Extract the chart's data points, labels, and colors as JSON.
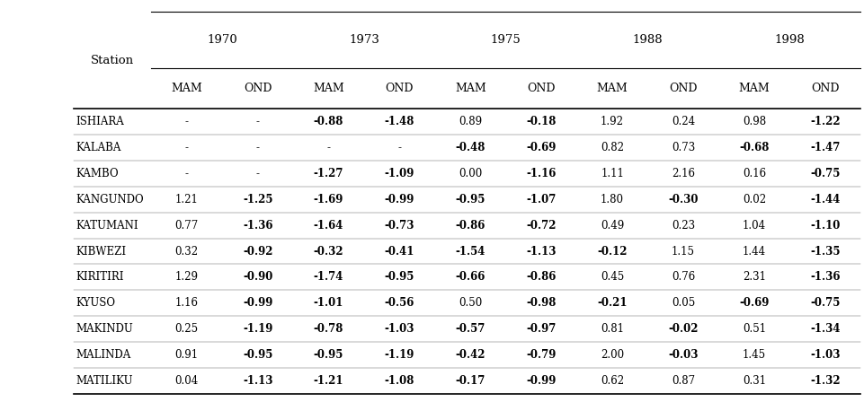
{
  "years": [
    "1970",
    "1973",
    "1975",
    "1988",
    "1998"
  ],
  "seasons": [
    "MAM",
    "OND"
  ],
  "stations": [
    "ISHIARA",
    "KALABA",
    "KAMBO",
    "KANGUNDO",
    "KATUMANI",
    "KIBWEZI",
    "KIRITIRI",
    "KYUSO",
    "MAKINDU",
    "MALINDA",
    "MATILIKU"
  ],
  "data": [
    [
      "-",
      "-",
      "-0.88",
      "-1.48",
      "0.89",
      "-0.18",
      "1.92",
      "0.24",
      "0.98",
      "-1.22"
    ],
    [
      "-",
      "-",
      "-",
      "-",
      "-0.48",
      "-0.69",
      "0.82",
      "0.73",
      "-0.68",
      "-1.47"
    ],
    [
      "-",
      "-",
      "-1.27",
      "-1.09",
      "0.00",
      "-1.16",
      "1.11",
      "2.16",
      "0.16",
      "-0.75"
    ],
    [
      "1.21",
      "-1.25",
      "-1.69",
      "-0.99",
      "-0.95",
      "-1.07",
      "1.80",
      "-0.30",
      "0.02",
      "-1.44"
    ],
    [
      "0.77",
      "-1.36",
      "-1.64",
      "-0.73",
      "-0.86",
      "-0.72",
      "0.49",
      "0.23",
      "1.04",
      "-1.10"
    ],
    [
      "0.32",
      "-0.92",
      "-0.32",
      "-0.41",
      "-1.54",
      "-1.13",
      "-0.12",
      "1.15",
      "1.44",
      "-1.35"
    ],
    [
      "1.29",
      "-0.90",
      "-1.74",
      "-0.95",
      "-0.66",
      "-0.86",
      "0.45",
      "0.76",
      "2.31",
      "-1.36"
    ],
    [
      "1.16",
      "-0.99",
      "-1.01",
      "-0.56",
      "0.50",
      "-0.98",
      "-0.21",
      "0.05",
      "-0.69",
      "-0.75"
    ],
    [
      "0.25",
      "-1.19",
      "-0.78",
      "-1.03",
      "-0.57",
      "-0.97",
      "0.81",
      "-0.02",
      "0.51",
      "-1.34"
    ],
    [
      "0.91",
      "-0.95",
      "-0.95",
      "-1.19",
      "-0.42",
      "-0.79",
      "2.00",
      "-0.03",
      "1.45",
      "-1.03"
    ],
    [
      "0.04",
      "-1.13",
      "-1.21",
      "-1.08",
      "-0.17",
      "-0.99",
      "0.62",
      "0.87",
      "0.31",
      "-1.32"
    ]
  ],
  "bold_cells": [
    [
      false,
      false,
      true,
      true,
      false,
      true,
      false,
      false,
      false,
      true
    ],
    [
      false,
      false,
      false,
      false,
      true,
      true,
      false,
      false,
      true,
      true
    ],
    [
      false,
      false,
      true,
      true,
      false,
      true,
      false,
      false,
      false,
      true
    ],
    [
      false,
      true,
      true,
      true,
      true,
      true,
      false,
      true,
      false,
      true
    ],
    [
      false,
      true,
      true,
      true,
      true,
      true,
      false,
      false,
      false,
      true
    ],
    [
      false,
      true,
      true,
      true,
      true,
      true,
      true,
      false,
      false,
      true
    ],
    [
      false,
      true,
      true,
      true,
      true,
      true,
      false,
      false,
      false,
      true
    ],
    [
      false,
      true,
      true,
      true,
      false,
      true,
      true,
      false,
      true,
      true
    ],
    [
      false,
      true,
      true,
      true,
      true,
      true,
      false,
      true,
      false,
      true
    ],
    [
      false,
      true,
      true,
      true,
      true,
      true,
      false,
      true,
      false,
      true
    ],
    [
      false,
      true,
      true,
      true,
      true,
      true,
      false,
      false,
      false,
      true
    ]
  ],
  "bg_color": "#ffffff",
  "line_color": "#000000",
  "header_fontsize": 9.5,
  "data_fontsize": 8.5,
  "station_fontsize": 8.5
}
